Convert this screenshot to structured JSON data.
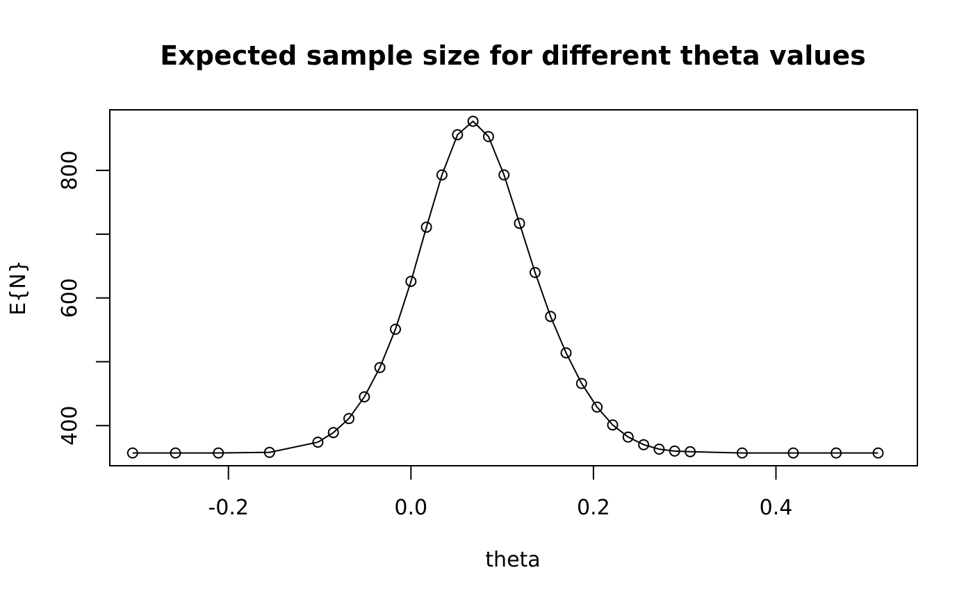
{
  "chart_data": {
    "type": "line",
    "title": "Expected sample size for different theta values",
    "xlabel": "theta",
    "ylabel": "E{N}",
    "xlim": [
      -0.33,
      0.555
    ],
    "ylim": [
      337,
      895
    ],
    "xticks": [
      -0.2,
      0.0,
      0.2,
      0.4
    ],
    "xtick_labels": [
      "-0.2",
      "0.0",
      "0.2",
      "0.4"
    ],
    "yticks": [
      400,
      500,
      600,
      700,
      800
    ],
    "ytick_labels": [
      "400",
      "",
      "600",
      "",
      "800"
    ],
    "grid": false,
    "legend": "none",
    "markers": "open-circle",
    "series": [
      {
        "x": [
          -0.305,
          -0.258,
          -0.211,
          -0.155,
          -0.102,
          -0.085,
          -0.068,
          -0.051,
          -0.034,
          -0.017,
          0.0,
          0.017,
          0.034,
          0.051,
          0.068,
          0.085,
          0.102,
          0.119,
          0.136,
          0.153,
          0.17,
          0.187,
          0.204,
          0.221,
          0.238,
          0.255,
          0.272,
          0.289,
          0.306,
          0.363,
          0.419,
          0.466,
          0.512
        ],
        "y": [
          357,
          357,
          357,
          358,
          374,
          389,
          411,
          445,
          491,
          551,
          626,
          711,
          793,
          856,
          877,
          853,
          793,
          717,
          640,
          571,
          514,
          466,
          429,
          401,
          382,
          370,
          363,
          360,
          359,
          357,
          357,
          357,
          357
        ]
      }
    ]
  }
}
